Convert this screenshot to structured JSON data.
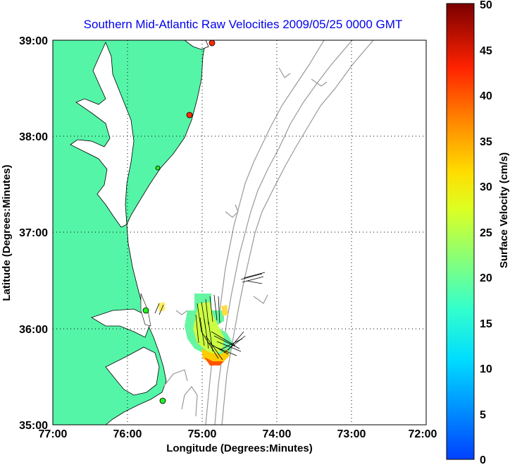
{
  "title": "Southern Mid-Atlantic Raw Velocities 2009/05/25 0000 GMT",
  "x_axis": {
    "label": "Longitude (Degrees:Minutes)",
    "ticks": [
      "77:00",
      "76:00",
      "75:00",
      "74:00",
      "73:00",
      "72:00"
    ]
  },
  "y_axis": {
    "label": "Latitude (Degrees:Minutes)",
    "ticks": [
      "35:00",
      "36:00",
      "37:00",
      "38:00",
      "39:00"
    ]
  },
  "colorbar": {
    "label": "Surface Velocity (cm/s)",
    "ticks": [
      "0",
      "5",
      "10",
      "15",
      "20",
      "25",
      "30",
      "35",
      "40",
      "45",
      "50"
    ]
  },
  "colors": {
    "land": "#55f5a8",
    "title": "#0000ee",
    "station_red": "#ff2a00",
    "station_green": "#22ee22",
    "contour": "#999999",
    "gridline": "#000000"
  },
  "map": {
    "lon_range": [
      -77,
      -72
    ],
    "lat_range": [
      35,
      39
    ],
    "grid": "dotted",
    "stations": [
      {
        "lon": -74.85,
        "lat": 38.99,
        "color": "red"
      },
      {
        "lon": -75.12,
        "lat": 38.22,
        "color": "red"
      },
      {
        "lon": -75.52,
        "lat": 37.87,
        "color": "green"
      },
      {
        "lon": -75.68,
        "lat": 36.19,
        "color": "green"
      },
      {
        "lon": -75.52,
        "lat": 35.26,
        "color": "green"
      }
    ],
    "speed_range_cm_s": [
      0,
      50
    ]
  }
}
